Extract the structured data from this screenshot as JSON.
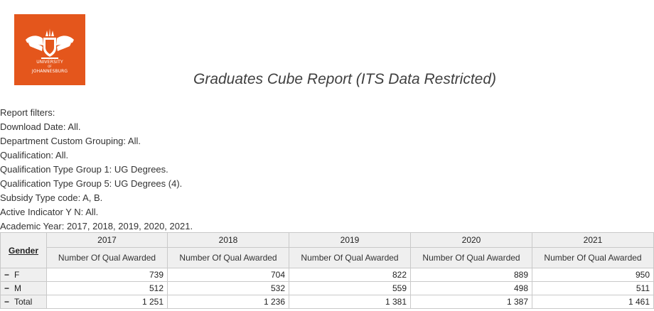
{
  "logo": {
    "line1": "UNIVERSITY",
    "line2": "OF",
    "line3": "JOHANNESBURG",
    "background": "#e4561c"
  },
  "report": {
    "title": "Graduates Cube Report (ITS Data Restricted)"
  },
  "filters": [
    "Report filters:",
    "Download Date: All.",
    "Department Custom Grouping: All.",
    "Qualification: All.",
    "Qualification Type Group 1: UG Degrees.",
    "Qualification Type Group 5: UG Degrees (4).",
    "Subsidy Type code: A, B.",
    "Active Indicator Y N: All.",
    "Academic Year: 2017, 2018, 2019, 2020, 2021."
  ],
  "table": {
    "row_header_label": "Gender",
    "measure_label": "Number Of Qual Awarded",
    "years": [
      "2017",
      "2018",
      "2019",
      "2020",
      "2021"
    ],
    "rows": [
      {
        "toggle": "−",
        "label": "F",
        "values": [
          "739",
          "704",
          "822",
          "889",
          "950"
        ]
      },
      {
        "toggle": "−",
        "label": "M",
        "values": [
          "512",
          "532",
          "559",
          "498",
          "511"
        ]
      },
      {
        "toggle": "−",
        "label": "Total",
        "values": [
          "1 251",
          "1 236",
          "1 381",
          "1 387",
          "1 461"
        ]
      }
    ]
  }
}
